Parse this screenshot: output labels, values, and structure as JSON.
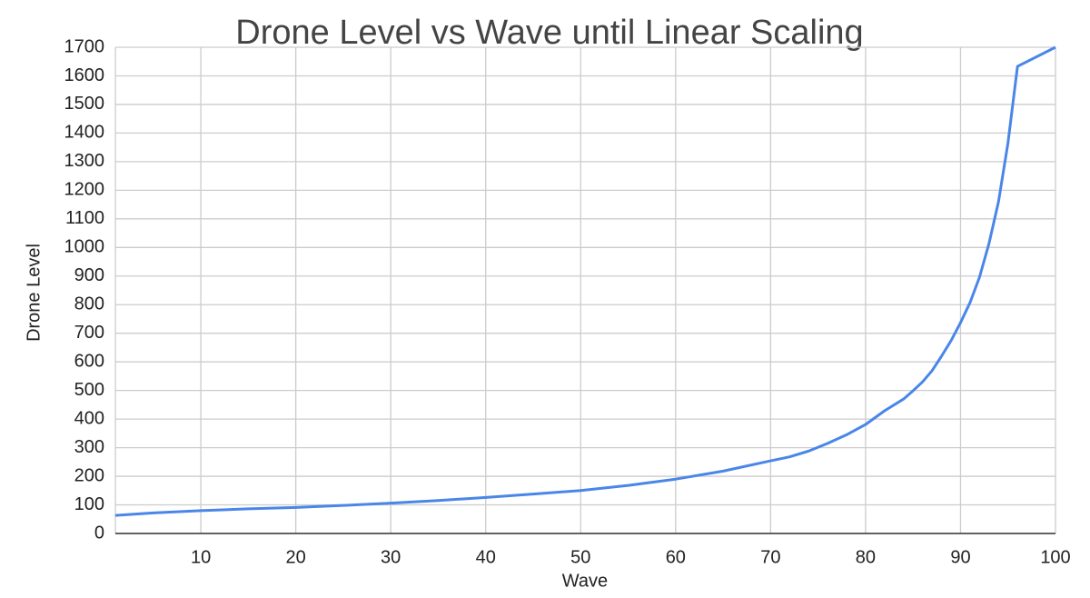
{
  "chart_data": {
    "type": "line",
    "title": "Drone Level vs Wave until Linear Scaling",
    "x_label": "Wave",
    "y_label": "Drone Level",
    "x": [
      1,
      5,
      10,
      15,
      20,
      25,
      30,
      35,
      40,
      45,
      50,
      55,
      60,
      65,
      70,
      72,
      74,
      76,
      78,
      80,
      82,
      84,
      85,
      86,
      87,
      88,
      89,
      90,
      91,
      92,
      93,
      94,
      95,
      96,
      100
    ],
    "series": [
      {
        "name": "Drone Level",
        "color": "#4a86e8",
        "values": [
          63,
          72,
          80,
          86,
          91,
          98,
          106,
          115,
          126,
          138,
          150,
          168,
          190,
          218,
          254,
          268,
          288,
          315,
          345,
          381,
          429,
          470,
          499,
          530,
          569,
          620,
          674,
          737,
          807,
          896,
          1014,
          1160,
          1366,
          1633,
          1700
        ]
      }
    ],
    "xlim": [
      1,
      100
    ],
    "xticks": [
      10,
      20,
      30,
      40,
      50,
      60,
      70,
      80,
      90,
      100
    ],
    "ylim": [
      0,
      1700
    ],
    "yticks": [
      0,
      100,
      200,
      300,
      400,
      500,
      600,
      700,
      800,
      900,
      1000,
      1100,
      1200,
      1300,
      1400,
      1500,
      1600,
      1700
    ],
    "grid": true
  }
}
